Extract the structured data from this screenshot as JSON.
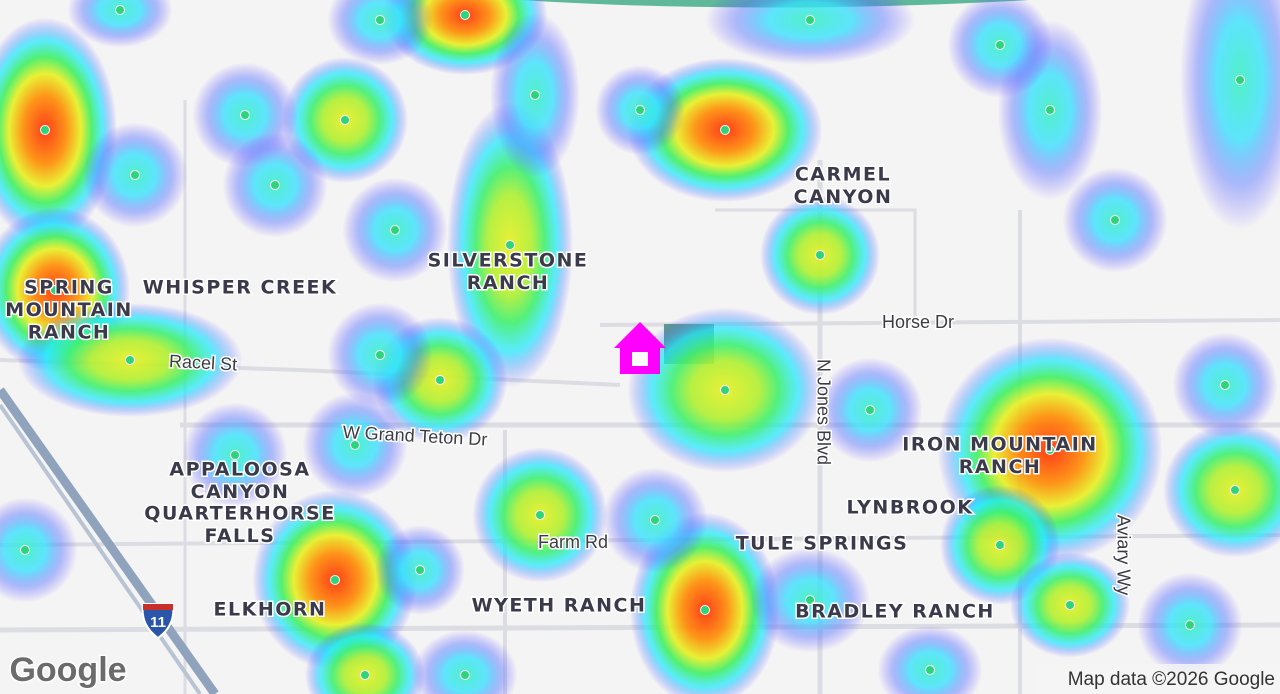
{
  "map": {
    "neighborhoods": [
      [
        "CARMEL",
        "CANYON"
      ],
      [
        "SILVERSTONE",
        "RANCH"
      ],
      [
        "WHISPER CREEK"
      ],
      [
        "SPRING",
        "MOUNTAIN",
        "RANCH"
      ],
      [
        "APPALOOSA",
        "CANYON"
      ],
      [
        "QUARTERHORSE",
        "FALLS"
      ],
      [
        "IRON MOUNTAIN",
        "RANCH"
      ],
      [
        "LYNBROOK"
      ],
      [
        "TULE SPRINGS"
      ],
      [
        "WYETH RANCH"
      ],
      [
        "BRADLEY RANCH"
      ],
      [
        "ELKHORN"
      ]
    ],
    "streets": [
      "Horse Dr",
      "Racel St",
      "W Grand Teton Dr",
      "Farm Rd",
      "N Jones Blvd",
      "Aviary Wy"
    ],
    "highway_shield": "11",
    "logo": "Google",
    "attribution": "Map data ©2026 Google"
  }
}
